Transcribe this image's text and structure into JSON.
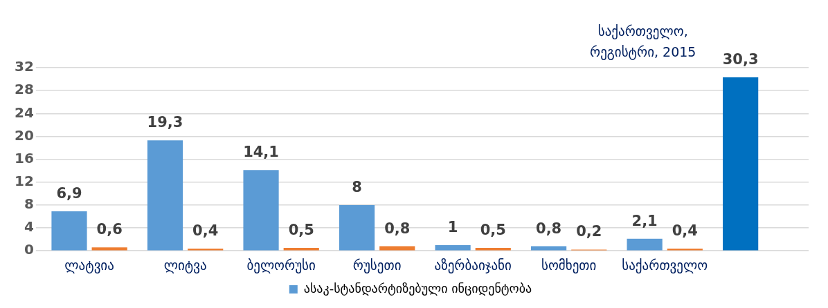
{
  "chart_data": {
    "type": "bar",
    "categories": [
      "ლატვია",
      "ლიტვა",
      "ბელორუსი",
      "რუსეთი",
      "აზერბაიჯანი",
      "სომხეთი",
      "საქართველო",
      null
    ],
    "series": [
      {
        "name": "ასაკ-სტანდარტიზებული ინციდენტობა",
        "color": "#5b9bd5",
        "colors": [
          "#5b9bd5",
          "#5b9bd5",
          "#5b9bd5",
          "#5b9bd5",
          "#5b9bd5",
          "#5b9bd5",
          "#5b9bd5",
          "#0070c0"
        ],
        "values": [
          6.9,
          19.3,
          14.1,
          8,
          1,
          0.8,
          2.1,
          30.3
        ],
        "value_labels": [
          "6,9",
          "19,3",
          "14,1",
          "8",
          "1",
          "0,8",
          "2,1",
          "30,3"
        ]
      },
      {
        "color": "#ed7d31",
        "values": [
          0.6,
          0.4,
          0.5,
          0.8,
          0.5,
          0.2,
          0.4,
          null
        ],
        "value_labels": [
          "0,6",
          "0,4",
          "0,5",
          "0,8",
          "0,5",
          "0,2",
          "0,4",
          null
        ]
      }
    ],
    "ylim": [
      0,
      32
    ],
    "yticks": [
      0,
      4,
      8,
      12,
      16,
      20,
      24,
      28,
      32
    ],
    "grid": "y",
    "legend": "bottom",
    "annotations": [
      "საქართველო,\nრეგისტრი, 2015"
    ]
  }
}
